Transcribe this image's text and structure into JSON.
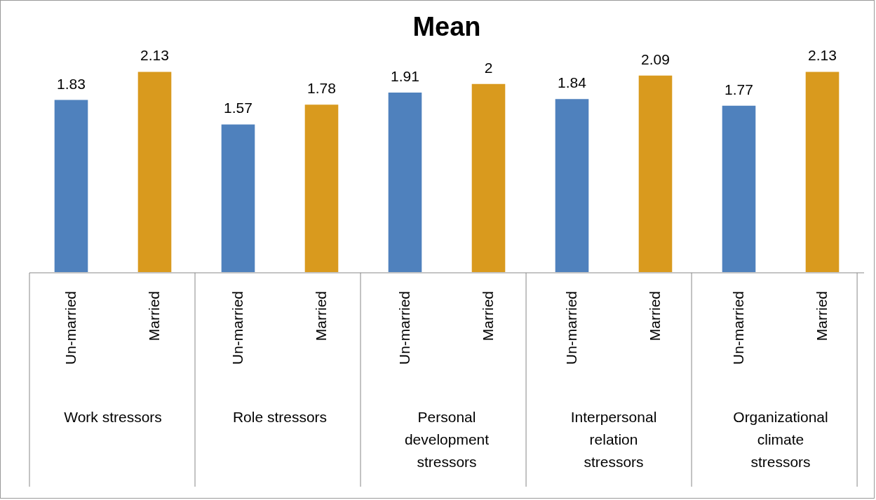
{
  "chart_data": {
    "type": "bar",
    "title": "Mean",
    "categories": [
      "Work stressors",
      "Role stressors",
      "Personal development stressors",
      "Interpersonal relation stressors",
      "Organizational climate stressors"
    ],
    "series": [
      {
        "name": "Un-married",
        "color": "#4f81bd",
        "values": [
          1.83,
          1.57,
          1.91,
          1.84,
          1.77
        ]
      },
      {
        "name": "Married",
        "color": "#d99a1e",
        "values": [
          2.13,
          1.78,
          2,
          2.09,
          2.13
        ]
      }
    ],
    "data_labels": true
  }
}
